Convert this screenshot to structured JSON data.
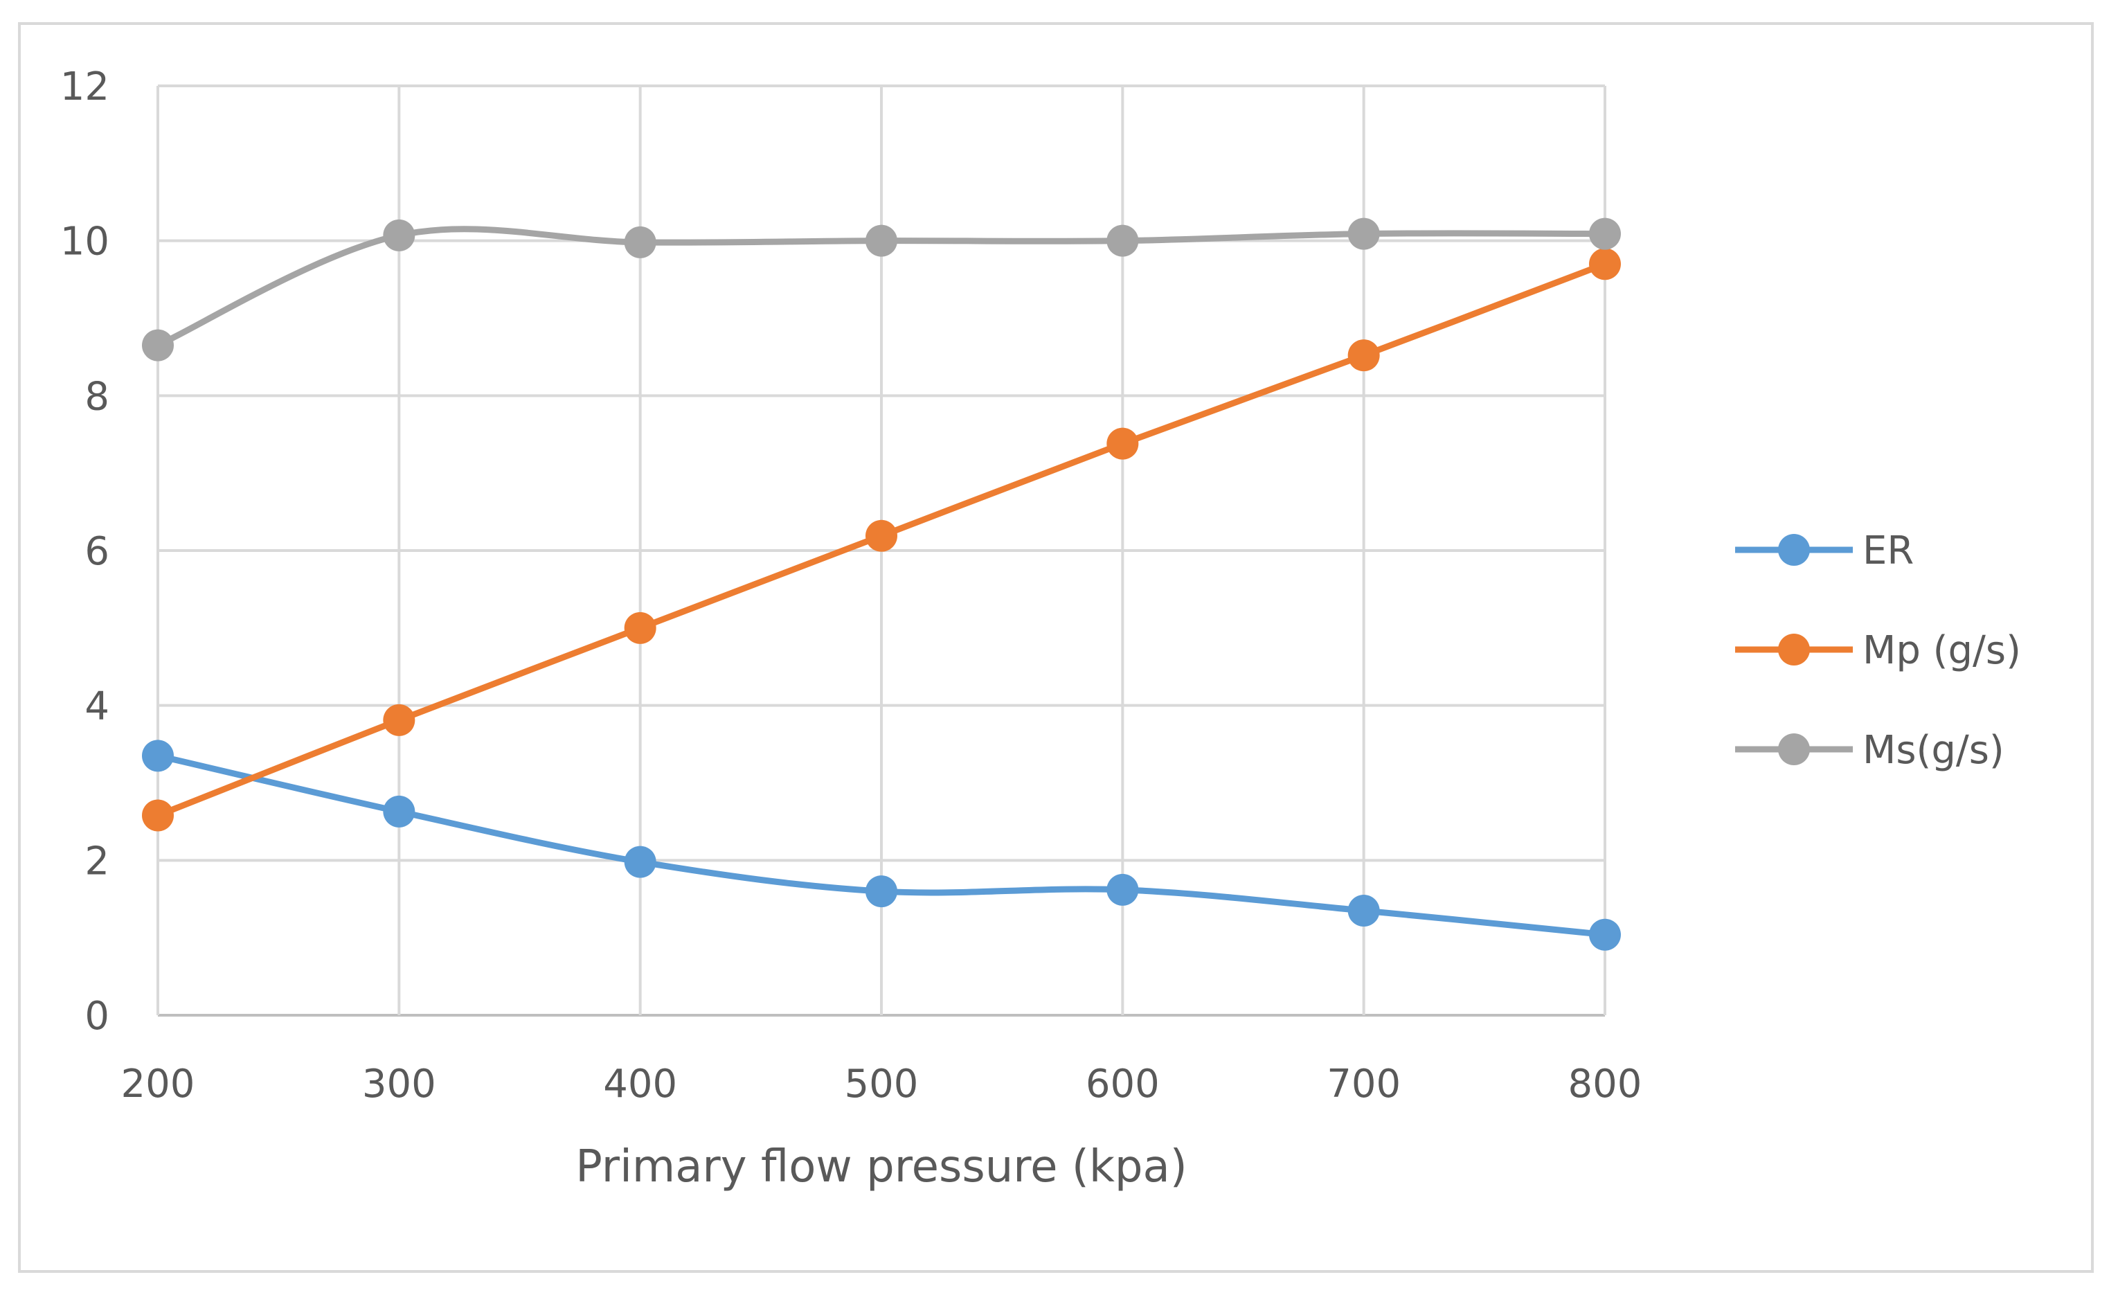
{
  "chart_data": {
    "type": "line",
    "title": "",
    "xlabel": "Primary flow pressure (kpa)",
    "ylabel": "",
    "x": [
      200,
      300,
      400,
      500,
      600,
      700,
      800
    ],
    "xlim": [
      200,
      800
    ],
    "ylim": [
      0,
      12
    ],
    "x_ticks": [
      "200",
      "300",
      "400",
      "500",
      "600",
      "700",
      "800"
    ],
    "y_ticks": [
      "0",
      "2",
      "4",
      "6",
      "8",
      "10",
      "12"
    ],
    "grid": true,
    "smooth": true,
    "legend_position": "right",
    "series": [
      {
        "name": "ER",
        "color": "#5b9bd5",
        "values": [
          3.35,
          2.63,
          1.98,
          1.6,
          1.62,
          1.35,
          1.04
        ]
      },
      {
        "name": "Mp (g/s)",
        "color": "#ed7d31",
        "values": [
          2.58,
          3.81,
          5.0,
          6.19,
          7.38,
          8.52,
          9.7
        ]
      },
      {
        "name": "Ms(g/s)",
        "color": "#a5a5a5",
        "values": [
          8.65,
          10.07,
          9.98,
          10.0,
          10.0,
          10.09,
          10.09
        ]
      }
    ]
  }
}
